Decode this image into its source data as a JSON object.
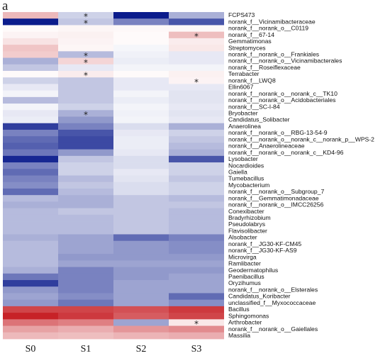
{
  "panel_label": "a",
  "chart_data": {
    "type": "heatmap",
    "title": "",
    "xlabel": "",
    "ylabel": "",
    "colorscale": {
      "low": "#0b1c8c",
      "mid": "#ffffff",
      "high": "#c4161c",
      "range": [
        -1,
        1
      ]
    },
    "columns": [
      "S0",
      "S1",
      "S2",
      "S3"
    ],
    "rows": [
      "FCPS473",
      "norank_f__Vicinamibacteraceae",
      "norank_f__norank_o__C0119",
      "norank_f__67-14",
      "Gemmatimonas",
      "Streptomyces",
      "norank_f__norank_o__Frankiales",
      "norank_f__norank_o__Vicinamibacterales",
      "norank_f__Roseiflexaceae",
      "Terrabacter",
      "norank_f__LWQ8",
      "Ellin6067",
      "norank_f__norank_o__norank_c__TK10",
      "norank_f__norank_o__Acidobacteriales",
      "norank_f__SC-I-84",
      "Bryobacter",
      "Candidatus_Solibacter",
      "Anaerolinea",
      "norank_f__norank_o__RBG-13-54-9",
      "norank_f__norank_o__norank_c__norank_p__WPS-2",
      "norank_f__Anaerolineaceae",
      "norank_f__norank_o__norank_c__KD4-96",
      "Lysobacter",
      "Nocardioides",
      "Gaiella",
      "Tumebacillus",
      "Mycobacterium",
      "norank_f__norank_o__Subgroup_7",
      "norank_f__Gemmatimonadaceae",
      "norank_f__norank_o__IMCC26256",
      "Conexibacter",
      "Bradyrhizobium",
      "Pseudolabrys",
      "Flavisolibacter",
      "Alsobacter",
      "norank_f__JG30-KF-CM45",
      "norank_f__JG30-KF-AS9",
      "Microvirga",
      "Ramlibacter",
      "Geodermatophilus",
      "Paenibacillus",
      "Oryzihumus",
      "norank_f__norank_o__Elsterales",
      "Candidatus_Koribacter",
      "unclassified_f__Myxococcaceae",
      "Bacillus",
      "Sphingomonas",
      "Arthrobacter",
      "norank_f__norank_o__Gaiellales",
      "Massilia"
    ],
    "values": [
      [
        0.3,
        -0.2,
        -1.0,
        -0.35
      ],
      [
        -1.0,
        -0.25,
        -0.55,
        -0.75
      ],
      [
        0.02,
        0.04,
        0.03,
        0.03
      ],
      [
        0.05,
        0.06,
        0.02,
        0.28
      ],
      [
        0.12,
        0.05,
        0.02,
        0.08
      ],
      [
        0.25,
        0.04,
        -0.04,
        0.1
      ],
      [
        0.22,
        -0.3,
        -0.06,
        -0.1
      ],
      [
        -0.35,
        0.18,
        -0.08,
        -0.1
      ],
      [
        -0.25,
        -0.1,
        -0.05,
        -0.05
      ],
      [
        0.02,
        0.08,
        0.02,
        0.06
      ],
      [
        -0.2,
        -0.25,
        -0.1,
        0.05
      ],
      [
        -0.1,
        -0.25,
        -0.1,
        -0.1
      ],
      [
        -0.05,
        -0.25,
        -0.05,
        -0.12
      ],
      [
        -0.3,
        -0.25,
        -0.08,
        -0.12
      ],
      [
        -0.05,
        -0.2,
        -0.05,
        -0.1
      ],
      [
        -0.1,
        -0.35,
        -0.06,
        -0.12
      ],
      [
        -0.08,
        -0.45,
        -0.05,
        -0.1
      ],
      [
        -0.85,
        -0.55,
        -0.15,
        -0.35
      ],
      [
        -0.55,
        -0.75,
        -0.1,
        -0.2
      ],
      [
        -0.65,
        -0.8,
        -0.08,
        -0.25
      ],
      [
        -0.7,
        -0.8,
        -0.08,
        -0.3
      ],
      [
        -0.6,
        -0.45,
        -0.1,
        -0.35
      ],
      [
        -0.95,
        -0.25,
        -0.15,
        -0.75
      ],
      [
        -0.55,
        -0.2,
        -0.15,
        -0.2
      ],
      [
        -0.65,
        -0.2,
        -0.1,
        -0.2
      ],
      [
        -0.55,
        -0.3,
        -0.12,
        -0.25
      ],
      [
        -0.5,
        -0.25,
        -0.15,
        -0.2
      ],
      [
        -0.65,
        -0.3,
        -0.15,
        -0.2
      ],
      [
        -0.3,
        -0.35,
        -0.25,
        -0.3
      ],
      [
        -0.35,
        -0.35,
        -0.25,
        -0.25
      ],
      [
        -0.3,
        -0.25,
        -0.25,
        -0.3
      ],
      [
        -0.3,
        -0.3,
        -0.25,
        -0.3
      ],
      [
        -0.3,
        -0.3,
        -0.25,
        -0.3
      ],
      [
        -0.3,
        -0.3,
        -0.25,
        -0.3
      ],
      [
        -0.35,
        -0.4,
        -0.65,
        -0.55
      ],
      [
        -0.3,
        -0.4,
        -0.45,
        -0.5
      ],
      [
        -0.3,
        -0.4,
        -0.45,
        -0.5
      ],
      [
        -0.3,
        -0.45,
        -0.45,
        -0.45
      ],
      [
        -0.3,
        -0.4,
        -0.4,
        -0.4
      ],
      [
        -0.35,
        -0.55,
        -0.45,
        -0.45
      ],
      [
        -0.6,
        -0.55,
        -0.45,
        -0.4
      ],
      [
        -0.85,
        -0.55,
        -0.4,
        -0.4
      ],
      [
        -0.45,
        -0.55,
        -0.4,
        -0.4
      ],
      [
        -0.4,
        -0.5,
        -0.4,
        -0.65
      ],
      [
        -0.45,
        -0.6,
        -0.4,
        -0.5
      ],
      [
        0.8,
        0.8,
        0.75,
        0.85
      ],
      [
        0.95,
        0.85,
        0.7,
        0.8
      ],
      [
        0.6,
        0.55,
        -0.4,
        0.1
      ],
      [
        0.4,
        0.35,
        0.45,
        0.5
      ],
      [
        0.3,
        0.28,
        0.32,
        0.35
      ]
    ],
    "significance": [
      {
        "row": 0,
        "col": 1,
        "mark": "*"
      },
      {
        "row": 1,
        "col": 1,
        "mark": "*"
      },
      {
        "row": 3,
        "col": 3,
        "mark": "*"
      },
      {
        "row": 6,
        "col": 1,
        "mark": "*"
      },
      {
        "row": 7,
        "col": 1,
        "mark": "*"
      },
      {
        "row": 9,
        "col": 1,
        "mark": "*"
      },
      {
        "row": 10,
        "col": 3,
        "mark": "*"
      },
      {
        "row": 15,
        "col": 1,
        "mark": "*"
      },
      {
        "row": 47,
        "col": 3,
        "mark": "*"
      }
    ]
  }
}
